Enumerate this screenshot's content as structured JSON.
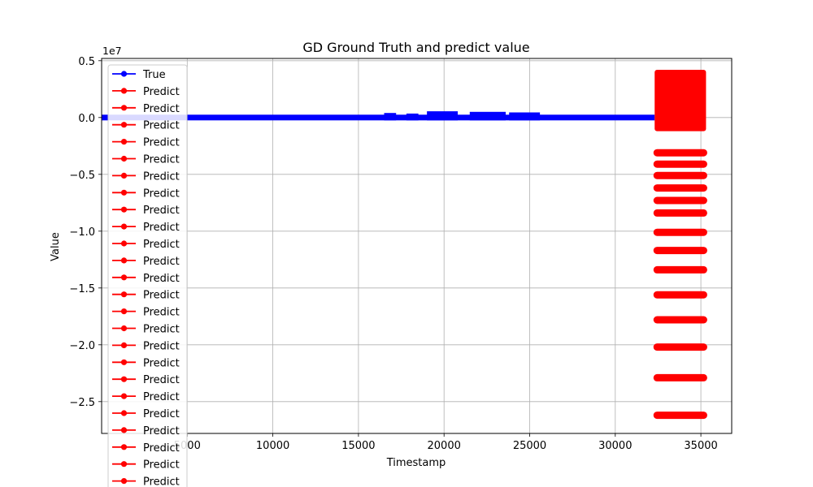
{
  "chart_data": {
    "type": "line",
    "title": "GD Ground Truth and predict value",
    "xlabel": "Timestamp",
    "ylabel": "Value",
    "y_offset_label": "1e7",
    "xlim": [
      0,
      36800
    ],
    "ylim": [
      -27800000,
      5200000
    ],
    "x_ticks": [
      5000,
      10000,
      15000,
      20000,
      25000,
      30000,
      35000
    ],
    "x_tick_labels": [
      "5000",
      "10000",
      "15000",
      "20000",
      "25000",
      "30000",
      "35000"
    ],
    "y_ticks": [
      5000000,
      0,
      -5000000,
      -10000000,
      -15000000,
      -20000000,
      -25000000
    ],
    "y_tick_labels": [
      "0.5",
      "0.0",
      "−0.5",
      "−1.0",
      "−1.5",
      "−2.0",
      "−2.5"
    ],
    "grid": true,
    "legend_position": "upper-left",
    "colors": {
      "true": "#0000ff",
      "predict": "#ff0000",
      "grid": "#b0b0b0"
    },
    "series": [
      {
        "name": "True",
        "color": "#0000ff",
        "x_range": [
          0,
          32300
        ],
        "baseline": 0,
        "band": [
          -250000,
          250000
        ],
        "bumps": [
          {
            "x_range": [
              16500,
              17200
            ],
            "y_range": [
              -250000,
              400000
            ]
          },
          {
            "x_range": [
              17800,
              18500
            ],
            "y_range": [
              -250000,
              350000
            ]
          },
          {
            "x_range": [
              19000,
              20800
            ],
            "y_range": [
              -250000,
              550000
            ]
          },
          {
            "x_range": [
              21500,
              23600
            ],
            "y_range": [
              -250000,
              500000
            ]
          },
          {
            "x_range": [
              23800,
              25600
            ],
            "y_range": [
              -250000,
              450000
            ]
          }
        ]
      },
      {
        "name": "Predict",
        "color": "#ff0000",
        "x_range": [
          32300,
          35300
        ],
        "block": [
          -1200000,
          4200000
        ],
        "levels": [
          -3100000,
          -4100000,
          -5100000,
          -6200000,
          -7300000,
          -8400000,
          -10100000,
          -11700000,
          -13400000,
          -15600000,
          -17800000,
          -20200000,
          -22900000,
          -26200000
        ]
      }
    ],
    "legend_labels": [
      "True",
      "Predict",
      "Predict",
      "Predict",
      "Predict",
      "Predict",
      "Predict",
      "Predict",
      "Predict",
      "Predict",
      "Predict",
      "Predict",
      "Predict",
      "Predict",
      "Predict",
      "Predict",
      "Predict",
      "Predict",
      "Predict",
      "Predict",
      "Predict",
      "Predict",
      "Predict",
      "Predict",
      "Predict"
    ]
  }
}
